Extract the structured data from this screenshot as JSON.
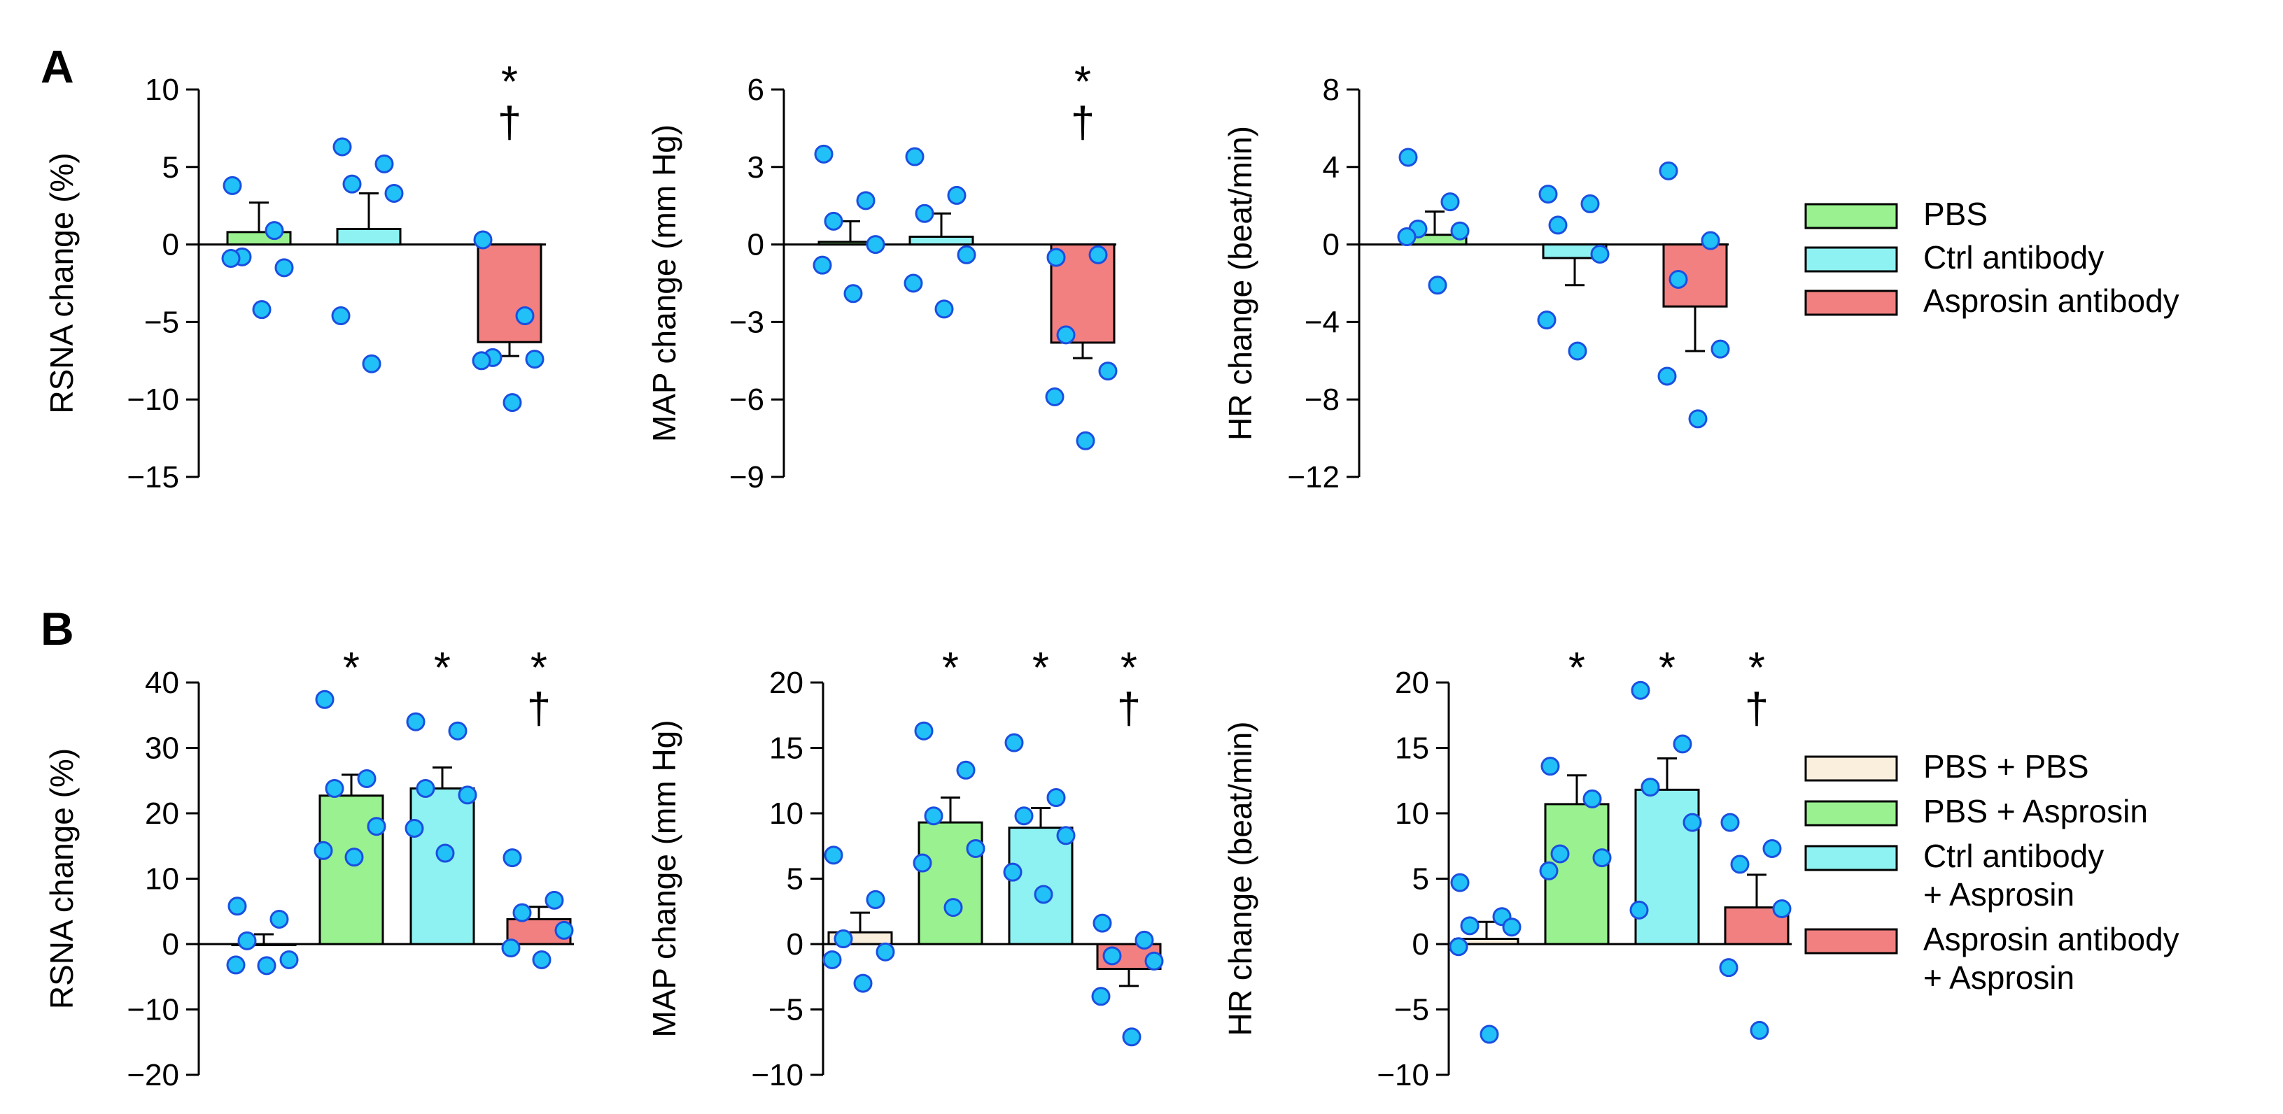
{
  "figure": {
    "panels": [
      {
        "id": "A",
        "label": "A"
      },
      {
        "id": "B",
        "label": "B"
      }
    ]
  },
  "legends": {
    "A": [
      {
        "label": "PBS",
        "color": "#99F28F"
      },
      {
        "label": "Ctrl antibody",
        "color": "#8FF2F2"
      },
      {
        "label": "Asprosin antibody",
        "color": "#F28080"
      }
    ],
    "B": [
      {
        "label": "PBS + PBS",
        "color": "#FAEEDC"
      },
      {
        "label": "PBS + Asprosin",
        "color": "#99F28F"
      },
      {
        "label": "Ctrl antibody",
        "label2": "+ Asprosin",
        "color": "#8FF2F2"
      },
      {
        "label": "Asprosin antibody",
        "label2": "+ Asprosin",
        "color": "#F28080"
      }
    ]
  },
  "colors": {
    "point_fill": "#21C0F7",
    "point_stroke": "#1A4FE0",
    "axis": "#000000"
  },
  "chart_data": [
    {
      "type": "bar",
      "panel": "A",
      "title": "",
      "ylabel": "RSNA change (%)",
      "xlabel": "",
      "categories": [
        "PBS",
        "Ctrl antibody",
        "Asprosin antibody"
      ],
      "ylim": [
        -15,
        10
      ],
      "yticks": [
        10,
        5,
        0,
        -5,
        -10,
        -15
      ],
      "values": [
        0.8,
        1.0,
        -6.3
      ],
      "errors": [
        1.9,
        2.3,
        0.9
      ],
      "points": [
        [
          3.8,
          0.9,
          -0.8,
          -1.5,
          -0.9,
          -4.2
        ],
        [
          6.3,
          5.2,
          3.9,
          3.3,
          -4.6,
          -7.7
        ],
        [
          0.3,
          -4.6,
          -7.3,
          -7.4,
          -7.5,
          -10.2
        ]
      ],
      "significance": [
        [],
        [],
        [
          "*",
          "†"
        ]
      ]
    },
    {
      "type": "bar",
      "panel": "A",
      "title": "",
      "ylabel": "MAP change (mm Hg)",
      "xlabel": "",
      "categories": [
        "PBS",
        "Ctrl antibody",
        "Asprosin antibody"
      ],
      "ylim": [
        -9,
        6
      ],
      "yticks": [
        6,
        3,
        0,
        -3,
        -6,
        -9
      ],
      "values": [
        0.1,
        0.3,
        -3.8
      ],
      "errors": [
        0.8,
        0.9,
        0.6
      ],
      "points": [
        [
          3.5,
          1.7,
          0.9,
          0.0,
          -0.8,
          -1.9
        ],
        [
          3.4,
          1.9,
          1.2,
          -0.4,
          -1.5,
          -2.5
        ],
        [
          -0.5,
          -0.4,
          -3.5,
          -4.9,
          -5.9,
          -7.6
        ]
      ],
      "significance": [
        [],
        [],
        [
          "*",
          "†"
        ]
      ]
    },
    {
      "type": "bar",
      "panel": "A",
      "title": "",
      "ylabel": "HR change (beat/min)",
      "xlabel": "",
      "categories": [
        "PBS",
        "Ctrl antibody",
        "Asprosin antibody"
      ],
      "ylim": [
        -12,
        8
      ],
      "yticks": [
        8,
        4,
        0,
        -4,
        -8,
        -12
      ],
      "values": [
        0.5,
        -0.7,
        -3.2
      ],
      "errors": [
        1.2,
        1.4,
        2.3
      ],
      "points": [
        [
          4.5,
          2.2,
          0.8,
          0.7,
          0.4,
          -2.1
        ],
        [
          2.6,
          2.1,
          1.0,
          -0.5,
          -3.9,
          -5.5
        ],
        [
          3.8,
          0.2,
          -1.8,
          -5.4,
          -6.8,
          -9.0
        ]
      ],
      "significance": [
        [],
        [],
        []
      ]
    },
    {
      "type": "bar",
      "panel": "B",
      "title": "",
      "ylabel": "RSNA change (%)",
      "xlabel": "",
      "categories": [
        "PBS + PBS",
        "PBS + Asprosin",
        "Ctrl antibody + Asprosin",
        "Asprosin antibody + Asprosin"
      ],
      "ylim": [
        -20,
        40
      ],
      "yticks": [
        40,
        30,
        20,
        10,
        0,
        -10,
        -20
      ],
      "values": [
        0.0,
        22.7,
        23.8,
        3.8
      ],
      "errors": [
        1.5,
        3.2,
        3.2,
        1.9
      ],
      "points": [
        [
          5.8,
          3.8,
          0.5,
          -2.4,
          -3.2,
          -3.3
        ],
        [
          37.4,
          25.3,
          23.8,
          18.0,
          14.3,
          13.3
        ],
        [
          34.0,
          32.6,
          23.8,
          22.8,
          17.7,
          13.9
        ],
        [
          13.2,
          6.7,
          4.8,
          2.1,
          -0.6,
          -2.4
        ]
      ],
      "significance": [
        [],
        [
          "*"
        ],
        [
          "*"
        ],
        [
          "*",
          "†"
        ]
      ]
    },
    {
      "type": "bar",
      "panel": "B",
      "title": "",
      "ylabel": "MAP change (mm Hg)",
      "xlabel": "",
      "categories": [
        "PBS + PBS",
        "PBS + Asprosin",
        "Ctrl antibody + Asprosin",
        "Asprosin antibody + Asprosin"
      ],
      "ylim": [
        -10,
        20
      ],
      "yticks": [
        20,
        15,
        10,
        5,
        0,
        -5,
        -10
      ],
      "values": [
        0.9,
        9.3,
        8.9,
        -1.9
      ],
      "errors": [
        1.5,
        1.9,
        1.5,
        1.3
      ],
      "points": [
        [
          6.8,
          3.4,
          0.4,
          -0.6,
          -1.2,
          -3.0
        ],
        [
          16.3,
          13.3,
          9.8,
          7.3,
          6.2,
          2.8
        ],
        [
          15.4,
          11.2,
          9.8,
          8.3,
          5.5,
          3.8
        ],
        [
          1.6,
          0.3,
          -0.9,
          -1.3,
          -4.0,
          -7.1
        ]
      ],
      "significance": [
        [],
        [
          "*"
        ],
        [
          "*"
        ],
        [
          "*",
          "†"
        ]
      ]
    },
    {
      "type": "bar",
      "panel": "B",
      "title": "",
      "ylabel": "HR change (beat/min)",
      "xlabel": "",
      "categories": [
        "PBS + PBS",
        "PBS + Asprosin",
        "Ctrl antibody + Asprosin",
        "Asprosin antibody + Asprosin"
      ],
      "ylim": [
        -10,
        20
      ],
      "yticks": [
        20,
        15,
        10,
        5,
        0,
        -5,
        -10
      ],
      "values": [
        0.4,
        10.7,
        11.8,
        2.8
      ],
      "errors": [
        1.3,
        2.2,
        2.4,
        2.5
      ],
      "points": [
        [
          4.7,
          2.1,
          1.4,
          1.3,
          -0.2,
          -6.9
        ],
        [
          13.6,
          11.1,
          6.9,
          6.6,
          5.6
        ],
        [
          19.4,
          15.3,
          12.0,
          9.3,
          2.6
        ],
        [
          9.3,
          7.3,
          6.1,
          2.7,
          -1.8,
          -6.6
        ]
      ],
      "significance": [
        [],
        [
          "*"
        ],
        [
          "*"
        ],
        [
          "*",
          "†"
        ]
      ]
    }
  ]
}
